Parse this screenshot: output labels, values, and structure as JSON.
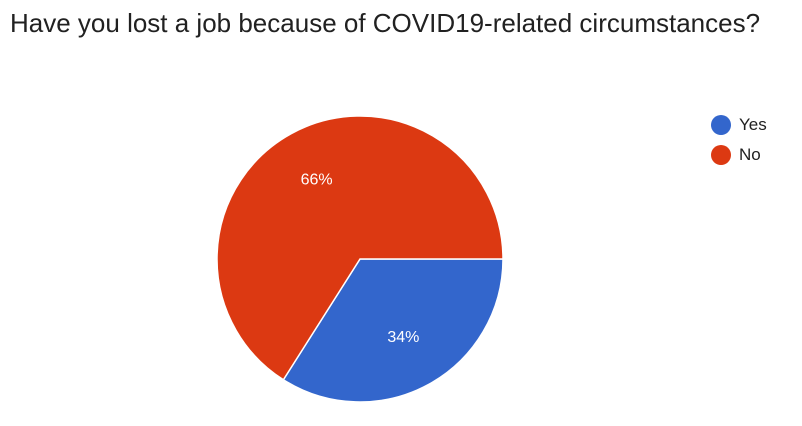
{
  "chart_data": {
    "type": "pie",
    "title": "Have you lost a job because of COVID19-related circumstances?",
    "slices": [
      {
        "name": "Yes",
        "value": 34,
        "label": "34%",
        "color": "#3366cc"
      },
      {
        "name": "No",
        "value": 66,
        "label": "66%",
        "color": "#dc3912"
      }
    ],
    "legend_position": "right"
  }
}
